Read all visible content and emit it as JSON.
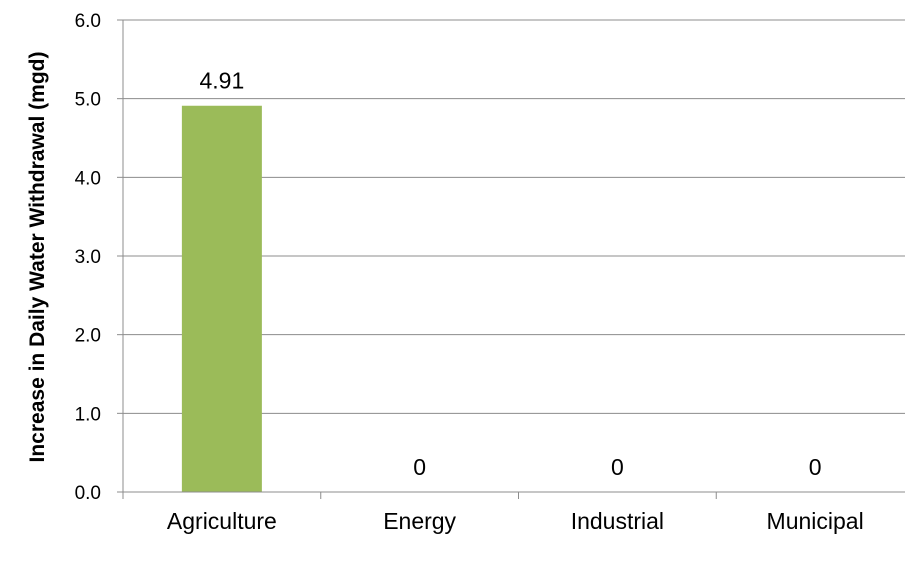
{
  "chart_data": {
    "type": "bar",
    "categories": [
      "Agriculture",
      "Energy",
      "Industrial",
      "Municipal"
    ],
    "values": [
      4.91,
      0,
      0,
      0
    ],
    "data_labels": [
      "4.91",
      "0",
      "0",
      "0"
    ],
    "title": "",
    "xlabel": "",
    "ylabel": "Increase in Daily Water Withdrawal (mgd)",
    "ylim": [
      0,
      6
    ],
    "yticks": [
      "0.0",
      "1.0",
      "2.0",
      "3.0",
      "4.0",
      "5.0",
      "6.0"
    ],
    "grid": true,
    "legend": "none",
    "colors": {
      "bar": "#9bbb59",
      "grid": "#8c8c8c",
      "axis": "#8c8c8c"
    }
  }
}
